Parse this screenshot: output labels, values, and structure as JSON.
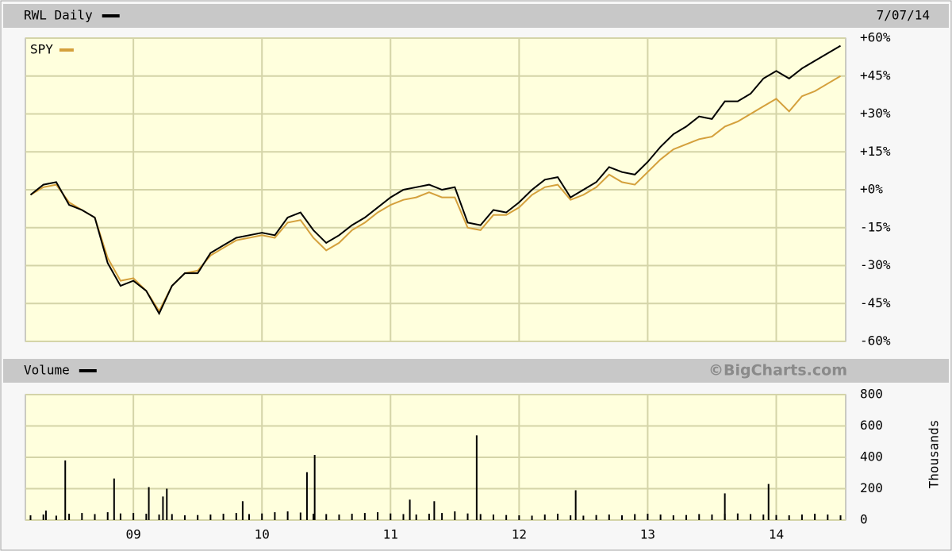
{
  "chart_data": [
    {
      "type": "line",
      "date": "7/07/14",
      "grid": true,
      "x": [
        8.2,
        8.3,
        8.4,
        8.5,
        8.6,
        8.7,
        8.8,
        8.9,
        9.0,
        9.1,
        9.2,
        9.3,
        9.4,
        9.5,
        9.6,
        9.7,
        9.8,
        9.9,
        10.0,
        10.1,
        10.2,
        10.3,
        10.4,
        10.5,
        10.6,
        10.7,
        10.8,
        10.9,
        11.0,
        11.1,
        11.2,
        11.3,
        11.4,
        11.5,
        11.6,
        11.7,
        11.8,
        11.9,
        12.0,
        12.1,
        12.2,
        12.3,
        12.4,
        12.5,
        12.6,
        12.7,
        12.8,
        12.9,
        13.0,
        13.1,
        13.2,
        13.3,
        13.4,
        13.5,
        13.6,
        13.7,
        13.8,
        13.9,
        14.0,
        14.1,
        14.2,
        14.3,
        14.4,
        14.5
      ],
      "series": [
        {
          "name": "RWL Daily",
          "color": "#000000",
          "values": [
            -2,
            2,
            3,
            -6,
            -8,
            -11,
            -29,
            -38,
            -36,
            -40,
            -49,
            -38,
            -33,
            -33,
            -25,
            -22,
            -19,
            -18,
            -17,
            -18,
            -11,
            -9,
            -16,
            -21,
            -18,
            -14,
            -11,
            -7,
            -3,
            0,
            1,
            2,
            0,
            1,
            -13,
            -14,
            -8,
            -9,
            -5,
            0,
            4,
            5,
            -3,
            0,
            3,
            9,
            7,
            6,
            11,
            17,
            22,
            25,
            29,
            28,
            35,
            35,
            38,
            44,
            47,
            44,
            48,
            51,
            54,
            57
          ]
        },
        {
          "name": "SPY",
          "color": "#d4a03c",
          "values": [
            -2,
            1,
            2,
            -5,
            -8,
            -11,
            -27,
            -36,
            -35,
            -40,
            -48,
            -38,
            -33,
            -32,
            -26,
            -23,
            -20,
            -19,
            -18,
            -19,
            -13,
            -12,
            -19,
            -24,
            -21,
            -16,
            -13,
            -9,
            -6,
            -4,
            -3,
            -1,
            -3,
            -3,
            -15,
            -16,
            -10,
            -10,
            -7,
            -2,
            1,
            2,
            -4,
            -2,
            1,
            6,
            3,
            2,
            7,
            12,
            16,
            18,
            20,
            21,
            25,
            27,
            30,
            33,
            36,
            31,
            37,
            39,
            42,
            45
          ]
        }
      ],
      "xlim": [
        8.16,
        14.54
      ],
      "xticks": [
        9,
        10,
        11,
        12,
        13,
        14
      ],
      "ylim": [
        -60,
        60
      ],
      "yticks": [
        {
          "value": 60,
          "label": "+60%"
        },
        {
          "value": 45,
          "label": "+45%"
        },
        {
          "value": 30,
          "label": "+30%"
        },
        {
          "value": 15,
          "label": "+15%"
        },
        {
          "value": 0,
          "label": "+0%"
        },
        {
          "value": -15,
          "label": "-15%"
        },
        {
          "value": -30,
          "label": "-30%"
        },
        {
          "value": -45,
          "label": "-45%"
        },
        {
          "value": -60,
          "label": "-60%"
        }
      ]
    },
    {
      "type": "bar",
      "credit": "©BigCharts.com",
      "ylabel": "Thousands",
      "grid": true,
      "x": [
        8.2,
        8.3,
        8.4,
        8.5,
        8.6,
        8.7,
        8.8,
        8.9,
        9.0,
        9.1,
        9.2,
        9.3,
        9.4,
        9.5,
        9.6,
        9.7,
        9.8,
        9.9,
        10.0,
        10.1,
        10.2,
        10.3,
        10.4,
        10.5,
        10.6,
        10.7,
        10.8,
        10.9,
        11.0,
        11.1,
        11.2,
        11.3,
        11.4,
        11.5,
        11.6,
        11.7,
        11.8,
        11.9,
        12.0,
        12.1,
        12.2,
        12.3,
        12.4,
        12.5,
        12.6,
        12.7,
        12.8,
        12.9,
        13.0,
        13.1,
        13.2,
        13.3,
        13.4,
        13.5,
        13.6,
        13.7,
        13.8,
        13.9,
        14.0,
        14.1,
        14.2,
        14.3,
        14.4,
        14.5,
        8.32,
        8.47,
        8.85,
        9.12,
        9.23,
        9.26,
        9.85,
        10.35,
        10.41,
        11.15,
        11.34,
        11.67,
        12.44,
        13.6,
        13.94
      ],
      "series": [
        {
          "name": "Volume",
          "color": "#000000",
          "values": [
            30,
            35,
            28,
            40,
            45,
            38,
            50,
            42,
            45,
            40,
            35,
            38,
            30,
            32,
            35,
            40,
            45,
            38,
            42,
            50,
            55,
            48,
            40,
            38,
            35,
            40,
            45,
            50,
            42,
            38,
            35,
            40,
            45,
            55,
            42,
            38,
            35,
            32,
            30,
            28,
            35,
            40,
            30,
            28,
            32,
            35,
            30,
            38,
            40,
            35,
            30,
            32,
            38,
            35,
            40,
            42,
            38,
            35,
            32,
            30,
            35,
            40,
            35,
            30,
            60,
            380,
            265,
            210,
            150,
            200,
            120,
            305,
            415,
            130,
            120,
            540,
            190,
            170,
            230
          ]
        }
      ],
      "xlim": [
        8.16,
        14.54
      ],
      "xticks": [
        {
          "value": 9,
          "label": "09"
        },
        {
          "value": 10,
          "label": "10"
        },
        {
          "value": 11,
          "label": "11"
        },
        {
          "value": 12,
          "label": "12"
        },
        {
          "value": 13,
          "label": "13"
        },
        {
          "value": 14,
          "label": "14"
        }
      ],
      "ylim": [
        0,
        800
      ],
      "yticks": [
        0,
        200,
        400,
        600,
        800
      ]
    }
  ]
}
